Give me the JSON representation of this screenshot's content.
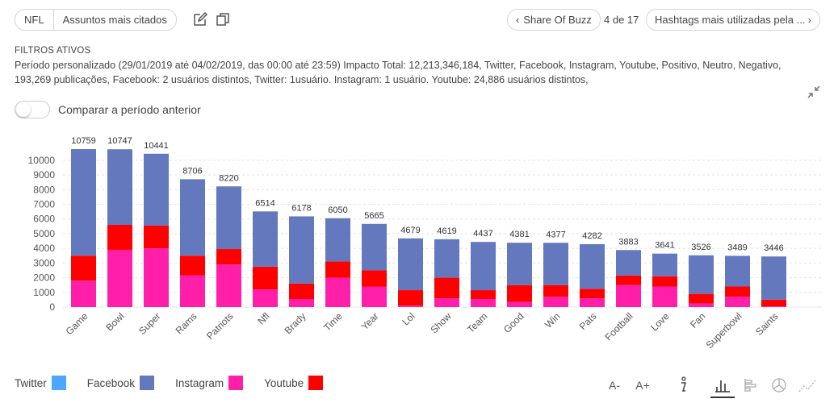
{
  "breadcrumb": {
    "item1": "NFL",
    "item2": "Assuntos mais citados"
  },
  "nav": {
    "prev_label": "Share Of Buzz",
    "page_indicator": "4 de 17",
    "next_label": "Hashtags mais utilizadas pela ..."
  },
  "filters": {
    "title": "FILTROS ATIVOS",
    "line1": "Período personalizado (29/01/2019 até 04/02/2019, das 00:00 até 23:59) Impacto Total: 12,213,346,184, Twitter, Facebook, Instagram, Youtube, Positivo, Neutro, Negativo,",
    "line2": "193,269 publicações, Facebook: 2 usuários distintos, Twitter: 1usuário. Instagram: 1 usuário. Youtube: 24,886 usuários distintos,"
  },
  "compare": {
    "label": "Comparar a período anterior",
    "enabled": false
  },
  "toolbar": {
    "font_decrease": "A-",
    "font_increase": "A+"
  },
  "legend": [
    {
      "name": "Twitter",
      "color": "#4da6ff"
    },
    {
      "name": "Facebook",
      "color": "#6478be"
    },
    {
      "name": "Instagram",
      "color": "#ff1fa8"
    },
    {
      "name": "Youtube",
      "color": "#ff0000"
    }
  ],
  "chart_data": {
    "type": "bar",
    "stacked": true,
    "categories": [
      "Game",
      "Bowl",
      "Super",
      "Rams",
      "Patriots",
      "Nfl",
      "Brady",
      "Time",
      "Year",
      "Lol",
      "Show",
      "Team",
      "Good",
      "Win",
      "Pats",
      "Football",
      "Love",
      "Fan",
      "Superbowl",
      "Saints"
    ],
    "totals": [
      10759,
      10747,
      10441,
      8706,
      8220,
      6514,
      6178,
      6050,
      5665,
      4679,
      4619,
      4437,
      4381,
      4377,
      4282,
      3883,
      3641,
      3526,
      3489,
      3446
    ],
    "series": [
      {
        "name": "Twitter",
        "values": [
          0,
          0,
          0,
          0,
          0,
          0,
          0,
          0,
          0,
          0,
          0,
          0,
          0,
          0,
          0,
          0,
          0,
          0,
          0,
          0
        ]
      },
      {
        "name": "Instagram",
        "values": [
          1800,
          3900,
          4000,
          2150,
          2900,
          1200,
          550,
          2000,
          1400,
          100,
          600,
          550,
          350,
          700,
          600,
          1500,
          1400,
          250,
          700,
          50
        ]
      },
      {
        "name": "Youtube",
        "values": [
          1700,
          1700,
          1550,
          1350,
          1050,
          1550,
          1050,
          1100,
          1100,
          1050,
          1400,
          600,
          1150,
          800,
          650,
          650,
          700,
          650,
          700,
          450
        ]
      },
      {
        "name": "Facebook",
        "values": [
          7259,
          5147,
          4891,
          5206,
          4270,
          3764,
          4578,
          2950,
          3165,
          3529,
          2619,
          3287,
          2881,
          2877,
          3032,
          1733,
          1541,
          2626,
          2089,
          2946
        ]
      }
    ],
    "yticks": [
      0,
      1000,
      2000,
      3000,
      4000,
      5000,
      6000,
      7000,
      8000,
      9000,
      10000
    ],
    "ylim": [
      0,
      10759
    ],
    "grid": true
  }
}
